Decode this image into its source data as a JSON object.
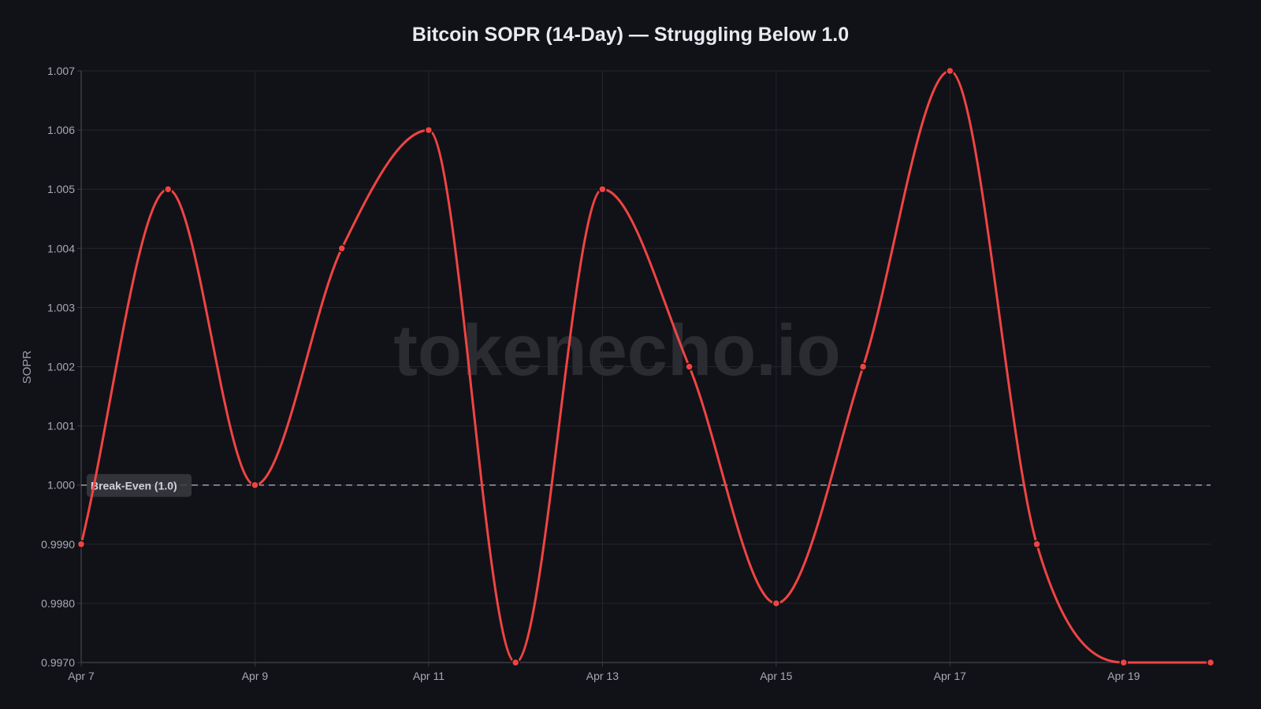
{
  "chart_data": {
    "type": "line",
    "title": "Bitcoin SOPR (14-Day) — Struggling Below 1.0",
    "xlabel": "",
    "ylabel": "SOPR",
    "x": [
      "Apr 7",
      "Apr 8",
      "Apr 9",
      "Apr 10",
      "Apr 11",
      "Apr 12",
      "Apr 13",
      "Apr 14",
      "Apr 15",
      "Apr 16",
      "Apr 17",
      "Apr 18",
      "Apr 19",
      "Apr 20"
    ],
    "x_tick_labels": [
      "Apr 7",
      "Apr 9",
      "Apr 11",
      "Apr 13",
      "Apr 15",
      "Apr 17",
      "Apr 19"
    ],
    "series": [
      {
        "name": "SOPR",
        "color": "#ef4444",
        "values": [
          0.999,
          1.005,
          1.0,
          1.004,
          1.006,
          0.997,
          1.005,
          1.002,
          0.998,
          1.002,
          1.007,
          0.999,
          0.997,
          0.997
        ]
      }
    ],
    "ylim": [
      0.997,
      1.007
    ],
    "y_ticks": [
      {
        "value": 1.007,
        "label": "1.007"
      },
      {
        "value": 1.006,
        "label": "1.006"
      },
      {
        "value": 1.005,
        "label": "1.005"
      },
      {
        "value": 1.004,
        "label": "1.004"
      },
      {
        "value": 1.003,
        "label": "1.003"
      },
      {
        "value": 1.002,
        "label": "1.002"
      },
      {
        "value": 1.001,
        "label": "1.001"
      },
      {
        "value": 1.0,
        "label": "1.000"
      },
      {
        "value": 0.999,
        "label": "0.9990"
      },
      {
        "value": 0.998,
        "label": "0.9980"
      },
      {
        "value": 0.997,
        "label": "0.9970"
      }
    ],
    "grid": true,
    "legend": null,
    "annotations": [
      {
        "type": "hline",
        "value": 1.0,
        "style": "dashed",
        "label": "Break-Even (1.0)"
      }
    ],
    "watermark": "tokenecho.io"
  }
}
